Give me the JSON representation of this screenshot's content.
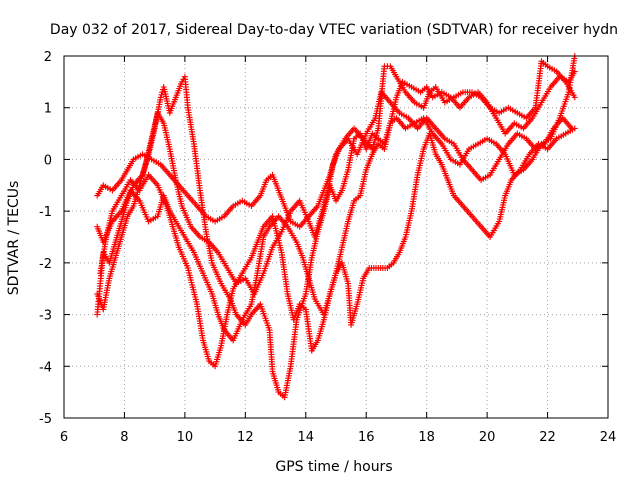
{
  "chart_data": {
    "type": "scatter",
    "title": "Day 032 of 2017, Sidereal Day-to-day VTEC variation (SDTVAR) for receiver hydn",
    "xlabel": "GPS time / hours",
    "ylabel": "SDTVAR / TECUs",
    "xlim": [
      6,
      24
    ],
    "ylim": [
      -5,
      2
    ],
    "xticks": [
      "6",
      "8",
      "10",
      "12",
      "14",
      "16",
      "18",
      "20",
      "22",
      "24"
    ],
    "yticks": [
      "-5",
      "-4",
      "-3",
      "-2",
      "-1",
      "0",
      "1",
      "2"
    ],
    "grid": true,
    "marker": "plus",
    "color": "#ff0000",
    "series": [
      {
        "points": [
          [
            7.1,
            -0.7
          ],
          [
            7.3,
            -0.5
          ],
          [
            7.6,
            -0.6
          ],
          [
            7.9,
            -0.4
          ],
          [
            8.1,
            -0.2
          ],
          [
            8.3,
            0.0
          ],
          [
            8.6,
            0.1
          ],
          [
            8.9,
            0.0
          ],
          [
            9.2,
            -0.1
          ],
          [
            9.5,
            -0.3
          ],
          [
            9.8,
            -0.5
          ],
          [
            10.1,
            -0.7
          ],
          [
            10.4,
            -0.9
          ],
          [
            10.7,
            -1.1
          ],
          [
            11.0,
            -1.2
          ],
          [
            11.3,
            -1.1
          ],
          [
            11.6,
            -0.9
          ],
          [
            11.9,
            -0.8
          ],
          [
            12.2,
            -0.9
          ],
          [
            12.5,
            -0.7
          ],
          [
            12.7,
            -0.4
          ],
          [
            12.9,
            -0.3
          ],
          [
            13.1,
            -0.6
          ],
          [
            13.3,
            -0.9
          ],
          [
            13.5,
            -1.2
          ],
          [
            13.8,
            -1.3
          ],
          [
            14.1,
            -1.1
          ],
          [
            14.4,
            -0.9
          ],
          [
            14.6,
            -0.6
          ],
          [
            14.8,
            -0.3
          ],
          [
            15.0,
            0.1
          ],
          [
            15.3,
            0.4
          ],
          [
            15.6,
            0.6
          ],
          [
            15.9,
            0.4
          ],
          [
            16.2,
            0.2
          ],
          [
            16.4,
            0.6
          ],
          [
            16.6,
            1.8
          ],
          [
            16.8,
            1.8
          ],
          [
            17.0,
            1.6
          ],
          [
            17.3,
            1.3
          ],
          [
            17.6,
            1.1
          ],
          [
            17.9,
            1.0
          ],
          [
            18.1,
            1.3
          ],
          [
            18.3,
            1.4
          ],
          [
            18.6,
            1.1
          ],
          [
            18.9,
            1.2
          ],
          [
            19.2,
            1.3
          ],
          [
            19.5,
            1.3
          ],
          [
            19.8,
            1.2
          ],
          [
            20.1,
            1.0
          ],
          [
            20.4,
            0.9
          ],
          [
            20.7,
            1.0
          ],
          [
            21.0,
            0.9
          ],
          [
            21.3,
            0.8
          ],
          [
            21.6,
            1.0
          ],
          [
            21.8,
            1.9
          ],
          [
            22.0,
            1.8
          ],
          [
            22.3,
            1.7
          ],
          [
            22.6,
            1.5
          ],
          [
            22.9,
            1.2
          ]
        ]
      },
      {
        "points": [
          [
            7.1,
            -3.0
          ],
          [
            7.2,
            -2.4
          ],
          [
            7.3,
            -1.8
          ],
          [
            7.5,
            -2.0
          ],
          [
            7.7,
            -1.6
          ],
          [
            7.9,
            -1.2
          ],
          [
            8.1,
            -0.8
          ],
          [
            8.3,
            -0.5
          ],
          [
            8.6,
            -0.3
          ],
          [
            8.8,
            0.1
          ],
          [
            9.0,
            0.6
          ],
          [
            9.2,
            1.2
          ],
          [
            9.3,
            1.4
          ],
          [
            9.5,
            0.9
          ],
          [
            9.7,
            1.2
          ],
          [
            9.9,
            1.5
          ],
          [
            10.0,
            1.6
          ],
          [
            10.1,
            1.0
          ],
          [
            10.3,
            0.3
          ],
          [
            10.5,
            -0.6
          ],
          [
            10.7,
            -1.4
          ],
          [
            10.9,
            -2.0
          ],
          [
            11.2,
            -2.4
          ],
          [
            11.5,
            -2.7
          ],
          [
            11.7,
            -3.0
          ],
          [
            12.0,
            -3.2
          ],
          [
            12.2,
            -3.0
          ],
          [
            12.5,
            -2.8
          ],
          [
            12.8,
            -3.3
          ],
          [
            12.9,
            -4.1
          ],
          [
            13.1,
            -4.5
          ],
          [
            13.3,
            -4.6
          ],
          [
            13.5,
            -4.0
          ],
          [
            13.7,
            -3.1
          ],
          [
            14.0,
            -2.6
          ],
          [
            14.2,
            -1.9
          ],
          [
            14.4,
            -1.4
          ],
          [
            14.6,
            -1.0
          ],
          [
            14.8,
            -0.5
          ],
          [
            15.0,
            -0.8
          ],
          [
            15.2,
            -0.6
          ],
          [
            15.4,
            -0.2
          ],
          [
            15.6,
            0.4
          ],
          [
            15.8,
            0.5
          ],
          [
            16.0,
            0.2
          ],
          [
            16.2,
            0.5
          ],
          [
            16.4,
            0.4
          ],
          [
            16.6,
            0.3
          ],
          [
            16.8,
            0.7
          ],
          [
            17.0,
            0.8
          ],
          [
            17.3,
            0.6
          ],
          [
            17.6,
            0.7
          ],
          [
            17.9,
            0.8
          ],
          [
            18.2,
            0.5
          ],
          [
            18.5,
            0.3
          ],
          [
            18.8,
            0.0
          ],
          [
            19.1,
            -0.1
          ],
          [
            19.4,
            0.2
          ],
          [
            19.7,
            0.3
          ],
          [
            20.0,
            0.4
          ],
          [
            20.3,
            0.3
          ],
          [
            20.6,
            0.1
          ],
          [
            20.9,
            -0.3
          ],
          [
            21.2,
            -0.2
          ],
          [
            21.5,
            0.0
          ],
          [
            21.8,
            0.3
          ],
          [
            22.1,
            0.4
          ],
          [
            22.4,
            0.8
          ],
          [
            22.7,
            1.3
          ],
          [
            22.9,
            2.0
          ]
        ]
      },
      {
        "points": [
          [
            7.1,
            -1.3
          ],
          [
            7.3,
            -1.6
          ],
          [
            7.6,
            -1.2
          ],
          [
            7.9,
            -1.0
          ],
          [
            8.2,
            -0.6
          ],
          [
            8.5,
            -0.8
          ],
          [
            8.8,
            -1.2
          ],
          [
            9.1,
            -1.1
          ],
          [
            9.3,
            -0.7
          ],
          [
            9.5,
            -1.0
          ],
          [
            9.7,
            -1.2
          ],
          [
            10.0,
            -1.5
          ],
          [
            10.3,
            -1.8
          ],
          [
            10.6,
            -2.2
          ],
          [
            10.9,
            -2.6
          ],
          [
            11.1,
            -3.0
          ],
          [
            11.3,
            -3.3
          ],
          [
            11.6,
            -3.5
          ],
          [
            11.9,
            -3.1
          ],
          [
            12.2,
            -2.8
          ],
          [
            12.4,
            -2.2
          ],
          [
            12.6,
            -1.5
          ],
          [
            12.8,
            -1.3
          ],
          [
            13.1,
            -1.1
          ],
          [
            13.4,
            -1.3
          ],
          [
            13.7,
            -1.6
          ],
          [
            13.9,
            -1.9
          ],
          [
            14.1,
            -2.3
          ],
          [
            14.3,
            -2.7
          ],
          [
            14.6,
            -3.0
          ],
          [
            14.8,
            -2.6
          ],
          [
            15.0,
            -2.2
          ],
          [
            15.2,
            -2.0
          ],
          [
            15.4,
            -2.4
          ],
          [
            15.5,
            -3.2
          ],
          [
            15.7,
            -2.8
          ],
          [
            15.9,
            -2.3
          ],
          [
            16.1,
            -2.1
          ],
          [
            16.4,
            -2.1
          ],
          [
            16.7,
            -2.1
          ],
          [
            16.9,
            -2.0
          ],
          [
            17.1,
            -1.8
          ],
          [
            17.3,
            -1.5
          ],
          [
            17.5,
            -1.0
          ],
          [
            17.7,
            -0.3
          ],
          [
            17.9,
            0.2
          ],
          [
            18.1,
            0.5
          ],
          [
            18.3,
            0.1
          ],
          [
            18.5,
            -0.1
          ],
          [
            18.7,
            -0.4
          ],
          [
            18.9,
            -0.7
          ],
          [
            19.2,
            -0.9
          ],
          [
            19.5,
            -1.1
          ],
          [
            19.8,
            -1.3
          ],
          [
            20.1,
            -1.5
          ],
          [
            20.4,
            -1.2
          ],
          [
            20.6,
            -0.7
          ],
          [
            20.8,
            -0.4
          ],
          [
            21.1,
            -0.2
          ],
          [
            21.4,
            0.1
          ],
          [
            21.7,
            0.3
          ],
          [
            22.0,
            0.2
          ],
          [
            22.3,
            0.4
          ],
          [
            22.6,
            0.5
          ],
          [
            22.9,
            0.6
          ]
        ]
      },
      {
        "points": [
          [
            7.2,
            -2.2
          ],
          [
            7.4,
            -1.5
          ],
          [
            7.6,
            -1.0
          ],
          [
            7.9,
            -0.7
          ],
          [
            8.2,
            -0.4
          ],
          [
            8.5,
            -0.6
          ],
          [
            8.8,
            -0.3
          ],
          [
            9.1,
            -0.5
          ],
          [
            9.4,
            -0.9
          ],
          [
            9.6,
            -1.3
          ],
          [
            9.8,
            -1.7
          ],
          [
            10.1,
            -2.1
          ],
          [
            10.4,
            -2.8
          ],
          [
            10.6,
            -3.5
          ],
          [
            10.8,
            -3.9
          ],
          [
            11.0,
            -4.0
          ],
          [
            11.2,
            -3.6
          ],
          [
            11.4,
            -3.0
          ],
          [
            11.6,
            -2.5
          ],
          [
            11.9,
            -2.2
          ],
          [
            12.2,
            -1.9
          ],
          [
            12.4,
            -1.6
          ],
          [
            12.6,
            -1.3
          ],
          [
            12.9,
            -1.1
          ],
          [
            13.2,
            -1.8
          ],
          [
            13.4,
            -2.6
          ],
          [
            13.6,
            -3.1
          ],
          [
            13.8,
            -2.8
          ],
          [
            14.0,
            -2.9
          ],
          [
            14.2,
            -3.7
          ],
          [
            14.4,
            -3.5
          ],
          [
            14.6,
            -3.1
          ],
          [
            14.8,
            -2.6
          ],
          [
            15.0,
            -2.2
          ],
          [
            15.2,
            -1.7
          ],
          [
            15.4,
            -1.2
          ],
          [
            15.6,
            -0.8
          ],
          [
            15.8,
            -0.7
          ],
          [
            16.0,
            -0.2
          ],
          [
            16.2,
            0.1
          ],
          [
            16.4,
            0.3
          ],
          [
            16.6,
            0.2
          ],
          [
            16.8,
            0.7
          ],
          [
            17.0,
            1.2
          ],
          [
            17.2,
            1.5
          ],
          [
            17.5,
            1.4
          ],
          [
            17.8,
            1.3
          ],
          [
            18.0,
            1.4
          ],
          [
            18.2,
            1.2
          ],
          [
            18.5,
            1.3
          ],
          [
            18.8,
            1.2
          ],
          [
            19.1,
            1.0
          ],
          [
            19.4,
            1.2
          ],
          [
            19.7,
            1.3
          ],
          [
            20.0,
            1.1
          ],
          [
            20.3,
            0.8
          ],
          [
            20.6,
            0.5
          ],
          [
            20.9,
            0.7
          ],
          [
            21.2,
            0.6
          ],
          [
            21.5,
            0.8
          ],
          [
            21.8,
            1.1
          ],
          [
            22.1,
            1.4
          ],
          [
            22.4,
            1.6
          ],
          [
            22.7,
            1.5
          ],
          [
            22.9,
            1.7
          ]
        ]
      },
      {
        "points": [
          [
            7.1,
            -2.6
          ],
          [
            7.3,
            -2.9
          ],
          [
            7.5,
            -2.3
          ],
          [
            7.7,
            -1.9
          ],
          [
            7.9,
            -1.5
          ],
          [
            8.1,
            -1.1
          ],
          [
            8.3,
            -0.9
          ],
          [
            8.5,
            -0.5
          ],
          [
            8.7,
            -0.1
          ],
          [
            8.9,
            0.4
          ],
          [
            9.1,
            0.9
          ],
          [
            9.3,
            0.7
          ],
          [
            9.5,
            0.2
          ],
          [
            9.7,
            -0.4
          ],
          [
            9.9,
            -0.9
          ],
          [
            10.2,
            -1.3
          ],
          [
            10.5,
            -1.5
          ],
          [
            10.8,
            -1.6
          ],
          [
            11.1,
            -1.8
          ],
          [
            11.4,
            -2.1
          ],
          [
            11.7,
            -2.4
          ],
          [
            12.0,
            -2.3
          ],
          [
            12.3,
            -2.6
          ],
          [
            12.6,
            -2.2
          ],
          [
            12.9,
            -1.7
          ],
          [
            13.2,
            -1.4
          ],
          [
            13.5,
            -1.0
          ],
          [
            13.8,
            -0.8
          ],
          [
            14.1,
            -1.2
          ],
          [
            14.3,
            -1.5
          ],
          [
            14.5,
            -1.1
          ],
          [
            14.7,
            -0.7
          ],
          [
            14.9,
            -0.1
          ],
          [
            15.1,
            0.2
          ],
          [
            15.4,
            0.4
          ],
          [
            15.7,
            0.1
          ],
          [
            16.0,
            0.5
          ],
          [
            16.3,
            0.8
          ],
          [
            16.5,
            1.3
          ],
          [
            16.8,
            1.1
          ],
          [
            17.1,
            0.9
          ],
          [
            17.4,
            0.8
          ],
          [
            17.7,
            0.6
          ],
          [
            18.0,
            0.8
          ],
          [
            18.3,
            0.6
          ],
          [
            18.6,
            0.4
          ],
          [
            18.9,
            0.3
          ],
          [
            19.2,
            0.0
          ],
          [
            19.5,
            -0.2
          ],
          [
            19.8,
            -0.4
          ],
          [
            20.1,
            -0.3
          ],
          [
            20.4,
            0.0
          ],
          [
            20.7,
            0.3
          ],
          [
            21.0,
            0.5
          ],
          [
            21.3,
            0.4
          ],
          [
            21.6,
            0.2
          ],
          [
            21.9,
            0.3
          ],
          [
            22.2,
            0.6
          ],
          [
            22.5,
            0.8
          ],
          [
            22.8,
            0.6
          ]
        ]
      }
    ]
  }
}
